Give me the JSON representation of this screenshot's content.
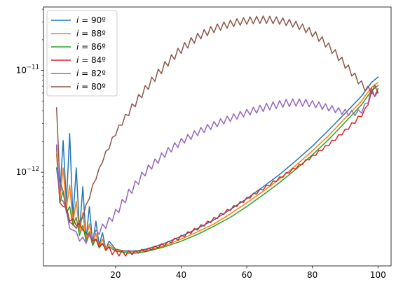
{
  "chart_data": {
    "type": "line",
    "title": "",
    "xlabel": "",
    "ylabel": "",
    "xlim": [
      -2,
      104
    ],
    "ylim": [
      1.2e-13,
      4.2e-11
    ],
    "y_scale": "log",
    "grid": false,
    "legend_position": "top-left",
    "x_ticks": [
      {
        "value": 20,
        "label": "20"
      },
      {
        "value": 40,
        "label": "40"
      },
      {
        "value": 60,
        "label": "60"
      },
      {
        "value": 80,
        "label": "80"
      },
      {
        "value": 100,
        "label": "100"
      }
    ],
    "y_ticks": [
      {
        "value": 1e-12,
        "base": "10",
        "exp": "−12"
      },
      {
        "value": 1e-11,
        "base": "10",
        "exp": "−11"
      }
    ],
    "series": [
      {
        "name": "i = 90º",
        "color": "#1f77b4",
        "x": [
          2,
          3,
          4,
          5,
          6,
          7,
          8,
          9,
          10,
          11,
          12,
          13,
          14,
          15,
          16,
          17,
          18,
          20,
          22,
          24,
          26,
          28,
          30,
          35,
          40,
          45,
          50,
          55,
          60,
          65,
          70,
          75,
          80,
          85,
          90,
          95,
          98,
          100
        ],
        "y": [
          1.1e-12,
          6e-13,
          2.05e-12,
          5e-13,
          2.4e-12,
          3.5e-13,
          1.1e-12,
          2.6e-13,
          7.2e-13,
          2.2e-13,
          4.6e-13,
          2e-13,
          3.3e-13,
          1.9e-13,
          2.55e-13,
          1.75e-13,
          2.1e-13,
          1.75e-13,
          1.7e-13,
          1.68e-13,
          1.68e-13,
          1.72e-13,
          1.78e-13,
          2e-13,
          2.35e-13,
          2.8e-13,
          3.4e-13,
          4.3e-13,
          5.5e-13,
          7.2e-13,
          9.5e-13,
          1.3e-12,
          1.8e-12,
          2.6e-12,
          3.8e-12,
          5.6e-12,
          7.6e-12,
          8.6e-12
        ]
      },
      {
        "name": "i = 88º",
        "color": "#ff7f0e",
        "x": [
          2,
          3,
          4,
          5,
          6,
          7,
          8,
          9,
          10,
          11,
          12,
          13,
          14,
          15,
          16,
          17,
          18,
          20,
          22,
          24,
          26,
          28,
          30,
          35,
          40,
          45,
          50,
          55,
          60,
          65,
          70,
          75,
          80,
          85,
          90,
          95,
          98,
          100
        ],
        "y": [
          1.5e-12,
          5e-13,
          1.1e-12,
          4.4e-13,
          7.5e-13,
          3.2e-13,
          5.2e-13,
          2.6e-13,
          4e-13,
          2.2e-13,
          3.1e-13,
          1.95e-13,
          2.5e-13,
          1.85e-13,
          2.2e-13,
          1.75e-13,
          1.95e-13,
          1.72e-13,
          1.68e-13,
          1.65e-13,
          1.65e-13,
          1.68e-13,
          1.72e-13,
          1.9e-13,
          2.2e-13,
          2.6e-13,
          3.1e-13,
          3.9e-13,
          5e-13,
          6.5e-13,
          8.6e-13,
          1.17e-12,
          1.62e-12,
          2.3e-12,
          3.4e-12,
          5e-12,
          6.8e-12,
          7.6e-12
        ]
      },
      {
        "name": "i = 86º",
        "color": "#2ca02c",
        "x": [
          2,
          3,
          4,
          5,
          6,
          7,
          8,
          9,
          10,
          11,
          12,
          13,
          14,
          15,
          16,
          17,
          18,
          20,
          22,
          24,
          26,
          28,
          30,
          35,
          40,
          45,
          50,
          55,
          60,
          65,
          70,
          75,
          80,
          85,
          90,
          95,
          98,
          100
        ],
        "y": [
          1.7e-12,
          5e-13,
          6.5e-13,
          4e-13,
          4.6e-13,
          3e-13,
          3.6e-13,
          2.4e-13,
          3e-13,
          2.1e-13,
          2.6e-13,
          1.9e-13,
          2.2e-13,
          1.8e-13,
          2e-13,
          1.72e-13,
          1.85e-13,
          1.68e-13,
          1.64e-13,
          1.6e-13,
          1.6e-13,
          1.63e-13,
          1.68e-13,
          1.85e-13,
          2.1e-13,
          2.45e-13,
          2.95e-13,
          3.6e-13,
          4.6e-13,
          6e-13,
          7.9e-13,
          1.07e-12,
          1.48e-12,
          2.1e-12,
          3.1e-12,
          4.6e-12,
          6.3e-12,
          7.1e-12
        ]
      },
      {
        "name": "i = 84º",
        "color": "#d62728",
        "x": [
          2,
          3,
          4,
          5,
          6,
          7,
          8,
          9,
          10,
          11,
          12,
          13,
          14,
          15,
          16,
          17,
          18,
          19,
          20,
          21,
          22,
          23,
          24,
          25,
          26,
          27,
          28,
          29,
          30,
          31,
          32,
          33,
          34,
          35,
          36,
          37,
          38,
          39,
          40,
          41,
          42,
          43,
          44,
          45,
          46,
          47,
          48,
          49,
          50,
          51,
          52,
          53,
          54,
          55,
          56,
          57,
          58,
          59,
          60,
          61,
          62,
          63,
          64,
          65,
          66,
          67,
          68,
          69,
          70,
          71,
          72,
          73,
          74,
          75,
          76,
          77,
          78,
          79,
          80,
          81,
          82,
          83,
          84,
          85,
          86,
          87,
          88,
          89,
          90,
          91,
          92,
          93,
          94,
          95,
          96,
          97,
          98,
          99,
          100
        ],
        "y": [
          1.8e-12,
          5e-13,
          4.6e-13,
          4.5e-13,
          3.3e-13,
          3.5e-13,
          3e-13,
          3.1e-13,
          2.7e-13,
          2.5e-13,
          2.4e-13,
          2.1e-13,
          2.2e-13,
          1.85e-13,
          2e-13,
          1.7e-13,
          1.85e-13,
          1.55e-13,
          1.75e-13,
          1.5e-13,
          1.7e-13,
          1.5e-13,
          1.7e-13,
          1.55e-13,
          1.7e-13,
          1.6e-13,
          1.75e-13,
          1.65e-13,
          1.8e-13,
          1.72e-13,
          1.88e-13,
          1.8e-13,
          1.98e-13,
          1.9e-13,
          2.1e-13,
          2.02e-13,
          2.25e-13,
          2.15e-13,
          2.4e-13,
          2.32e-13,
          2.6e-13,
          2.5e-13,
          2.8e-13,
          2.7e-13,
          3.05e-13,
          2.95e-13,
          3.3e-13,
          3.2e-13,
          3.6e-13,
          3.5e-13,
          3.95e-13,
          3.85e-13,
          4.3e-13,
          4.2e-13,
          4.7e-13,
          4.6e-13,
          5.15e-13,
          5.05e-13,
          5.65e-13,
          5.55e-13,
          6.2e-13,
          6.1e-13,
          6.8e-13,
          6.7e-13,
          7.45e-13,
          7.35e-13,
          8.2e-13,
          8.1e-13,
          9e-13,
          8.9e-13,
          9.9e-13,
          9.8e-13,
          1.09e-12,
          1.08e-12,
          1.2e-12,
          1.19e-12,
          1.33e-12,
          1.32e-12,
          1.47e-12,
          1.46e-12,
          1.64e-12,
          1.63e-12,
          1.83e-12,
          1.82e-12,
          2.06e-12,
          2.05e-12,
          2.33e-12,
          2.32e-12,
          2.65e-12,
          2.64e-12,
          3.05e-12,
          3.02e-12,
          3.55e-12,
          3.5e-12,
          4.2e-12,
          4.6e-12,
          6.2e-12,
          5.6e-12,
          6.6e-12
        ]
      },
      {
        "name": "i = 82º",
        "color": "#9467bd",
        "x": [
          2,
          3,
          4,
          5,
          6,
          7,
          8,
          9,
          10,
          11,
          12,
          13,
          14,
          15,
          16,
          17,
          18,
          19,
          20,
          21,
          22,
          23,
          24,
          25,
          26,
          27,
          28,
          29,
          30,
          31,
          32,
          33,
          34,
          35,
          36,
          37,
          38,
          39,
          40,
          41,
          42,
          43,
          44,
          45,
          46,
          47,
          48,
          49,
          50,
          51,
          52,
          53,
          54,
          55,
          56,
          57,
          58,
          59,
          60,
          61,
          62,
          63,
          64,
          65,
          66,
          67,
          68,
          69,
          70,
          71,
          72,
          73,
          74,
          75,
          76,
          77,
          78,
          79,
          80,
          81,
          82,
          83,
          84,
          85,
          86,
          87,
          88,
          89,
          90,
          91,
          92,
          93,
          94,
          95,
          96,
          97,
          98,
          99,
          100
        ],
        "y": [
          1.85e-12,
          5.5e-13,
          5.2e-13,
          4.2e-13,
          2.8e-13,
          2.7e-13,
          2.6e-13,
          2.1e-13,
          2.3e-13,
          2e-13,
          2.45e-13,
          2.2e-13,
          2.7e-13,
          2.45e-13,
          3.1e-13,
          2.8e-13,
          3.6e-13,
          3.3e-13,
          4.3e-13,
          4e-13,
          5.4e-13,
          5e-13,
          6.8e-13,
          6.2e-13,
          8.2e-13,
          7.6e-13,
          1e-12,
          9.2e-13,
          1.18e-12,
          1.07e-12,
          1.35e-12,
          1.22e-12,
          1.55e-12,
          1.4e-12,
          1.75e-12,
          1.58e-12,
          1.95e-12,
          1.75e-12,
          2.15e-12,
          1.93e-12,
          2.35e-12,
          2.1e-12,
          2.55e-12,
          2.28e-12,
          2.75e-12,
          2.45e-12,
          2.95e-12,
          2.62e-12,
          3.15e-12,
          2.8e-12,
          3.35e-12,
          2.98e-12,
          3.55e-12,
          3.15e-12,
          3.75e-12,
          3.32e-12,
          3.95e-12,
          3.5e-12,
          4.15e-12,
          3.65e-12,
          4.35e-12,
          3.8e-12,
          4.55e-12,
          3.95e-12,
          4.75e-12,
          4.1e-12,
          4.9e-12,
          4.22e-12,
          5.05e-12,
          4.35e-12,
          5.2e-12,
          4.4e-12,
          5.25e-12,
          4.45e-12,
          5.25e-12,
          4.45e-12,
          5.2e-12,
          4.4e-12,
          5.05e-12,
          4.3e-12,
          4.9e-12,
          4.15e-12,
          4.7e-12,
          4e-12,
          4.5e-12,
          3.85e-12,
          4.3e-12,
          3.7e-12,
          4.15e-12,
          3.6e-12,
          4.05e-12,
          3.6e-12,
          4.1e-12,
          3.8e-12,
          4.7e-12,
          4.8e-12,
          6.8e-12,
          5.5e-12,
          6.2e-12
        ]
      },
      {
        "name": "i = 80º",
        "color": "#8c564b",
        "x": [
          2,
          3,
          4,
          5,
          6,
          7,
          8,
          9,
          10,
          11,
          12,
          13,
          14,
          15,
          16,
          17,
          18,
          19,
          20,
          21,
          22,
          23,
          24,
          25,
          26,
          27,
          28,
          29,
          30,
          31,
          32,
          33,
          34,
          35,
          36,
          37,
          38,
          39,
          40,
          41,
          42,
          43,
          44,
          45,
          46,
          47,
          48,
          49,
          50,
          51,
          52,
          53,
          54,
          55,
          56,
          57,
          58,
          59,
          60,
          61,
          62,
          63,
          64,
          65,
          66,
          67,
          68,
          69,
          70,
          71,
          72,
          73,
          74,
          75,
          76,
          77,
          78,
          79,
          80,
          81,
          82,
          83,
          84,
          85,
          86,
          87,
          88,
          89,
          90,
          91,
          92,
          93,
          94,
          95,
          96,
          97,
          98,
          99,
          100
        ],
        "y": [
          4.3e-12,
          8e-13,
          6.5e-13,
          4.2e-13,
          3.2e-13,
          3.1e-13,
          2.8e-13,
          3.3e-13,
          3.6e-13,
          4.8e-13,
          5.5e-13,
          7.5e-13,
          8.5e-13,
          1.1e-12,
          1.25e-12,
          1.6e-12,
          1.7e-12,
          2.2e-12,
          2.3e-12,
          2.9e-12,
          2.9e-12,
          3.7e-12,
          3.6e-12,
          4.7e-12,
          4.4e-12,
          5.8e-12,
          5.4e-12,
          7.1e-12,
          6.5e-12,
          8.6e-12,
          7.8e-12,
          1.03e-11,
          9.3e-12,
          1.22e-11,
          1.1e-11,
          1.43e-11,
          1.28e-11,
          1.65e-11,
          1.47e-11,
          1.88e-11,
          1.66e-11,
          2.1e-11,
          1.85e-11,
          2.32e-11,
          2.04e-11,
          2.52e-11,
          2.2e-11,
          2.7e-11,
          2.35e-11,
          2.86e-11,
          2.48e-11,
          3e-11,
          2.6e-11,
          3.12e-11,
          2.7e-11,
          3.22e-11,
          2.78e-11,
          3.3e-11,
          2.84e-11,
          3.36e-11,
          2.88e-11,
          3.4e-11,
          2.9e-11,
          3.42e-11,
          2.9e-11,
          3.4e-11,
          2.88e-11,
          3.36e-11,
          2.84e-11,
          3.28e-11,
          2.76e-11,
          3.18e-11,
          2.66e-11,
          3.04e-11,
          2.52e-11,
          2.86e-11,
          2.35e-11,
          2.64e-11,
          2.15e-11,
          2.4e-11,
          1.93e-11,
          2.14e-11,
          1.7e-11,
          1.86e-11,
          1.47e-11,
          1.6e-11,
          1.25e-11,
          1.35e-11,
          1.05e-11,
          1.13e-11,
          8.8e-12,
          9.4e-12,
          7.4e-12,
          7.9e-12,
          6.3e-12,
          7e-12,
          5.9e-12,
          7.2e-12,
          6e-12
        ]
      }
    ]
  }
}
